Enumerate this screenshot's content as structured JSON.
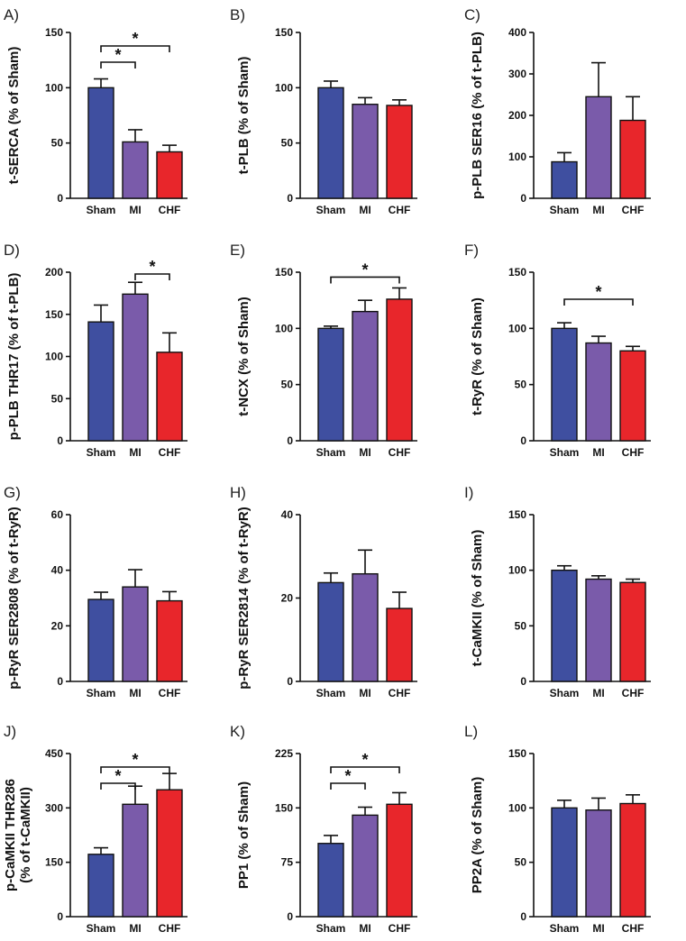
{
  "chart_data": [
    {
      "panel": "A)",
      "type": "bar",
      "ylabel": [
        "t-SERCA (% of Sham)"
      ],
      "categories": [
        "Sham",
        "MI",
        "CHF"
      ],
      "values": [
        100,
        51,
        42
      ],
      "errors": [
        8,
        11,
        6
      ],
      "ylim": [
        0,
        150
      ],
      "yticks": [
        0,
        50,
        100,
        150
      ],
      "significance": [
        {
          "from": 0,
          "to": 1,
          "label": "*"
        },
        {
          "from": 0,
          "to": 2,
          "label": "*"
        }
      ]
    },
    {
      "panel": "B)",
      "type": "bar",
      "ylabel": [
        "t-PLB (% of Sham)"
      ],
      "categories": [
        "Sham",
        "MI",
        "CHF"
      ],
      "values": [
        100,
        85,
        84
      ],
      "errors": [
        6,
        6,
        5
      ],
      "ylim": [
        0,
        150
      ],
      "yticks": [
        0,
        50,
        100,
        150
      ],
      "significance": []
    },
    {
      "panel": "C)",
      "type": "bar",
      "ylabel": [
        "p-PLB SER16 (% of t-PLB)"
      ],
      "categories": [
        "Sham",
        "MI",
        "CHF"
      ],
      "values": [
        88,
        245,
        188
      ],
      "errors": [
        22,
        82,
        57
      ],
      "ylim": [
        0,
        400
      ],
      "yticks": [
        0,
        100,
        200,
        300,
        400
      ],
      "significance": []
    },
    {
      "panel": "D)",
      "type": "bar",
      "ylabel": [
        "p-PLB THR17 (% of t-PLB)"
      ],
      "categories": [
        "Sham",
        "MI",
        "CHF"
      ],
      "values": [
        141,
        174,
        105
      ],
      "errors": [
        20,
        14,
        23
      ],
      "ylim": [
        0,
        200
      ],
      "yticks": [
        0,
        50,
        100,
        150,
        200
      ],
      "significance": [
        {
          "from": 1,
          "to": 2,
          "label": "*"
        }
      ]
    },
    {
      "panel": "E)",
      "type": "bar",
      "ylabel": [
        "t-NCX (% of Sham)"
      ],
      "categories": [
        "Sham",
        "MI",
        "CHF"
      ],
      "values": [
        100,
        115,
        126
      ],
      "errors": [
        2,
        10,
        10
      ],
      "ylim": [
        0,
        150
      ],
      "yticks": [
        0,
        50,
        100,
        150
      ],
      "significance": [
        {
          "from": 0,
          "to": 2,
          "label": "*"
        }
      ]
    },
    {
      "panel": "F)",
      "type": "bar",
      "ylabel": [
        "t-RyR (% of Sham)"
      ],
      "categories": [
        "Sham",
        "MI",
        "CHF"
      ],
      "values": [
        100,
        87,
        80
      ],
      "errors": [
        5,
        6,
        4
      ],
      "ylim": [
        0,
        150
      ],
      "yticks": [
        0,
        50,
        100,
        150
      ],
      "significance": [
        {
          "from": 0,
          "to": 2,
          "label": "*"
        }
      ]
    },
    {
      "panel": "G)",
      "type": "bar",
      "ylabel": [
        "p-RyR SER2808 (% of t-RyR)"
      ],
      "categories": [
        "Sham",
        "MI",
        "CHF"
      ],
      "values": [
        29.5,
        34,
        29
      ],
      "errors": [
        2.6,
        6.2,
        3.3
      ],
      "ylim": [
        0,
        60
      ],
      "yticks": [
        0,
        20,
        40,
        60
      ],
      "significance": []
    },
    {
      "panel": "H)",
      "type": "bar",
      "ylabel": [
        "p-RyR SER2814 (% of t-RyR)"
      ],
      "categories": [
        "Sham",
        "MI",
        "CHF"
      ],
      "values": [
        23.7,
        25.8,
        17.5
      ],
      "errors": [
        2.3,
        5.7,
        3.9
      ],
      "ylim": [
        0,
        40
      ],
      "yticks": [
        0,
        20,
        40
      ],
      "significance": []
    },
    {
      "panel": "I)",
      "type": "bar",
      "ylabel": [
        "t-CaMKII (% of Sham)"
      ],
      "categories": [
        "Sham",
        "MI",
        "CHF"
      ],
      "values": [
        100,
        92,
        89
      ],
      "errors": [
        4,
        3,
        3
      ],
      "ylim": [
        0,
        150
      ],
      "yticks": [
        0,
        50,
        100,
        150
      ],
      "significance": []
    },
    {
      "panel": "J)",
      "type": "bar",
      "ylabel": [
        "p-CaMKII THR286",
        "(% of t-CaMKII)"
      ],
      "categories": [
        "Sham",
        "MI",
        "CHF"
      ],
      "values": [
        172,
        310,
        350
      ],
      "errors": [
        18,
        50,
        45
      ],
      "ylim": [
        0,
        450
      ],
      "yticks": [
        0,
        150,
        300,
        450
      ],
      "significance": [
        {
          "from": 0,
          "to": 1,
          "label": "*"
        },
        {
          "from": 0,
          "to": 2,
          "label": "*"
        }
      ]
    },
    {
      "panel": "K)",
      "type": "bar",
      "ylabel": [
        "PP1 (% of Sham)"
      ],
      "categories": [
        "Sham",
        "MI",
        "CHF"
      ],
      "values": [
        101,
        140,
        155
      ],
      "errors": [
        11,
        11,
        16
      ],
      "ylim": [
        0,
        225
      ],
      "yticks": [
        0,
        75,
        150,
        225
      ],
      "significance": [
        {
          "from": 0,
          "to": 1,
          "label": "*"
        },
        {
          "from": 0,
          "to": 2,
          "label": "*"
        }
      ]
    },
    {
      "panel": "L)",
      "type": "bar",
      "ylabel": [
        "PP2A (% of Sham)"
      ],
      "categories": [
        "Sham",
        "MI",
        "CHF"
      ],
      "values": [
        100,
        98,
        104
      ],
      "errors": [
        7,
        11,
        8
      ],
      "ylim": [
        0,
        150
      ],
      "yticks": [
        0,
        50,
        100,
        150
      ],
      "significance": []
    }
  ],
  "colors": {
    "sham": "#3F4FA0",
    "mi": "#7A5BAA",
    "chf": "#E8262B",
    "axis": "#111111"
  }
}
